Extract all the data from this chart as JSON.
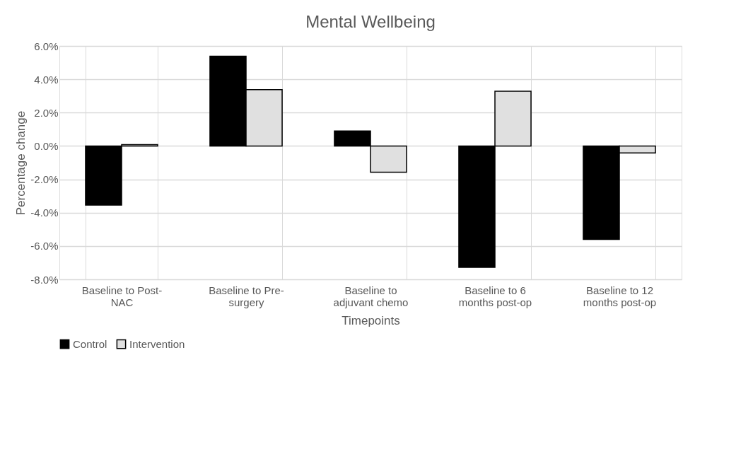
{
  "chart_data": {
    "type": "bar",
    "title": "Mental Wellbeing",
    "xlabel": "Timepoints",
    "ylabel": "Percentage change",
    "categories": [
      "Baseline to Post-NAC",
      "Baseline to Pre-surgery",
      "Baseline to adjuvant chemo",
      "Baseline to 6 months post-op",
      "Baseline to 12 months post-op"
    ],
    "series": [
      {
        "name": "Control",
        "color": "#000000",
        "values": [
          -3.55,
          5.38,
          0.9,
          -7.28,
          -5.6
        ]
      },
      {
        "name": "Intervention",
        "color": "#e0e0e0",
        "values": [
          0.08,
          3.38,
          -1.57,
          3.29,
          -0.42
        ]
      }
    ],
    "ylim": [
      -8,
      6
    ],
    "yticks": [
      {
        "value": -8,
        "label": "-8.0%"
      },
      {
        "value": -6,
        "label": "-6.0%"
      },
      {
        "value": -4,
        "label": "-4.0%"
      },
      {
        "value": -2,
        "label": "-2.0%"
      },
      {
        "value": 0,
        "label": "0.0%"
      },
      {
        "value": 2,
        "label": "2.0%"
      },
      {
        "value": 4,
        "label": "4.0%"
      },
      {
        "value": 6,
        "label": "6.0%"
      }
    ],
    "grid": true,
    "legend": "bottom"
  }
}
